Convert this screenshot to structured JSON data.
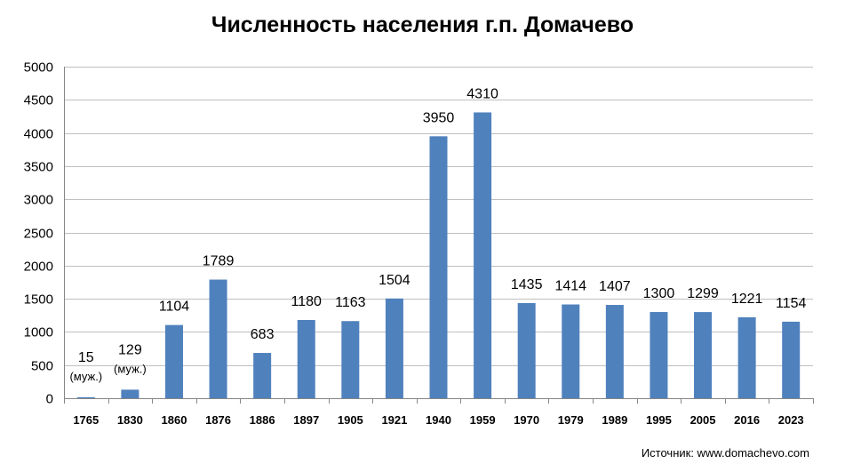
{
  "chart_data": {
    "type": "bar",
    "title": "Численность населения г.п. Домачево",
    "categories": [
      "1765",
      "1830",
      "1860",
      "1876",
      "1886",
      "1897",
      "1905",
      "1921",
      "1940",
      "1959",
      "1970",
      "1979",
      "1989",
      "1995",
      "2005",
      "2016",
      "2023"
    ],
    "values": [
      15,
      129,
      1104,
      1789,
      683,
      1180,
      1163,
      1504,
      3950,
      4310,
      1435,
      1414,
      1407,
      1300,
      1299,
      1221,
      1154
    ],
    "notes": [
      "(муж.)",
      "(муж.)",
      "",
      "",
      "",
      "",
      "",
      "",
      "",
      "",
      "",
      "",
      "",
      "",
      "",
      "",
      ""
    ],
    "ylim": [
      0,
      5000
    ],
    "yticks": [
      0,
      500,
      1000,
      1500,
      2000,
      2500,
      3000,
      3500,
      4000,
      4500,
      5000
    ],
    "grid": true,
    "bar_color": "#4F81BD",
    "source": "Источник: www.domachevo.com"
  }
}
